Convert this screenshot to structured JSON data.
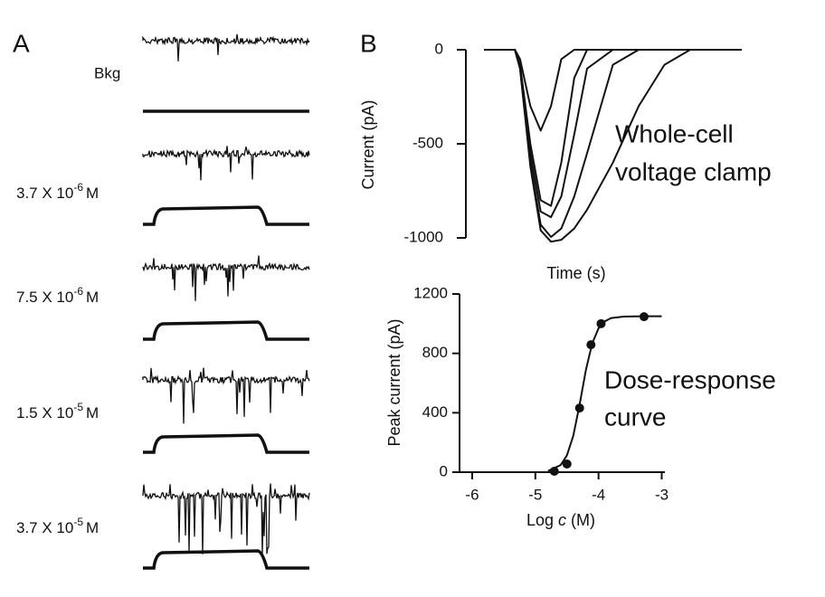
{
  "panel_a": {
    "label": "A",
    "conditions": [
      {
        "label": "Bkg"
      },
      {
        "mantissa": "3.7 X 10",
        "exponent": "-6",
        "unit": "M"
      },
      {
        "mantissa": "7.5 X 10",
        "exponent": "-6",
        "unit": "M"
      },
      {
        "mantissa": "1.5 X 10",
        "exponent": "-5",
        "unit": "M"
      },
      {
        "mantissa": "3.7 X 10",
        "exponent": "-5",
        "unit": "M"
      }
    ]
  },
  "chart_data": [
    {
      "type": "line",
      "panel_label": "B",
      "y_label": "Current (pA)",
      "x_label": "Time (s)",
      "annotation": [
        "Whole-cell",
        "voltage clamp"
      ],
      "x": [
        0,
        1.2,
        1.4,
        1.8,
        2.2,
        2.6,
        3,
        3.5,
        4,
        5,
        6,
        7,
        8,
        10
      ],
      "xlim": [
        0,
        10
      ],
      "ylim": [
        -1050,
        50
      ],
      "yticks": [
        0,
        -500,
        -1000
      ],
      "series": [
        {
          "color": "#111",
          "values": [
            0,
            0,
            -50,
            -300,
            -430,
            -300,
            -50,
            0,
            0,
            0,
            0,
            0,
            0,
            0
          ]
        },
        {
          "color": "#111",
          "values": [
            0,
            0,
            -80,
            -500,
            -800,
            -830,
            -600,
            -150,
            0,
            0,
            0,
            0,
            0,
            0
          ]
        },
        {
          "color": "#111",
          "values": [
            0,
            0,
            -90,
            -550,
            -860,
            -890,
            -780,
            -450,
            -100,
            0,
            0,
            0,
            0,
            0
          ]
        },
        {
          "color": "#111",
          "values": [
            0,
            0,
            -100,
            -600,
            -930,
            -995,
            -950,
            -780,
            -550,
            -80,
            0,
            0,
            0,
            0
          ]
        },
        {
          "color": "#111",
          "values": [
            0,
            0,
            -100,
            -620,
            -960,
            -1020,
            -1010,
            -950,
            -850,
            -600,
            -300,
            -80,
            0,
            0
          ]
        }
      ]
    },
    {
      "type": "scatter",
      "y_label": "Peak current (pA)",
      "x_label_parts": [
        "Log",
        "c",
        "(M)"
      ],
      "annotation": [
        "Dose-response",
        "curve"
      ],
      "xlim": [
        -6.2,
        -2.95
      ],
      "ylim": [
        0,
        1200
      ],
      "xticks": [
        -6,
        -5,
        -4,
        -3
      ],
      "yticks": [
        0,
        400,
        800,
        1200
      ],
      "color": "#111",
      "x": [
        -4.7,
        -4.5,
        -4.3,
        -4.12,
        -3.96,
        -3.28
      ],
      "values": [
        6,
        55,
        432,
        858,
        1000,
        1047
      ],
      "fit": {
        "x": [
          -4.8,
          -4.6,
          -4.5,
          -4.4,
          -4.3,
          -4.2,
          -4.1,
          -4.0,
          -3.9,
          -3.8,
          -3.6,
          -3.3,
          -3.0
        ],
        "values": [
          8,
          48,
          113,
          244,
          453,
          689,
          868,
          969,
          1016,
          1038,
          1048,
          1050,
          1050
        ]
      }
    }
  ]
}
